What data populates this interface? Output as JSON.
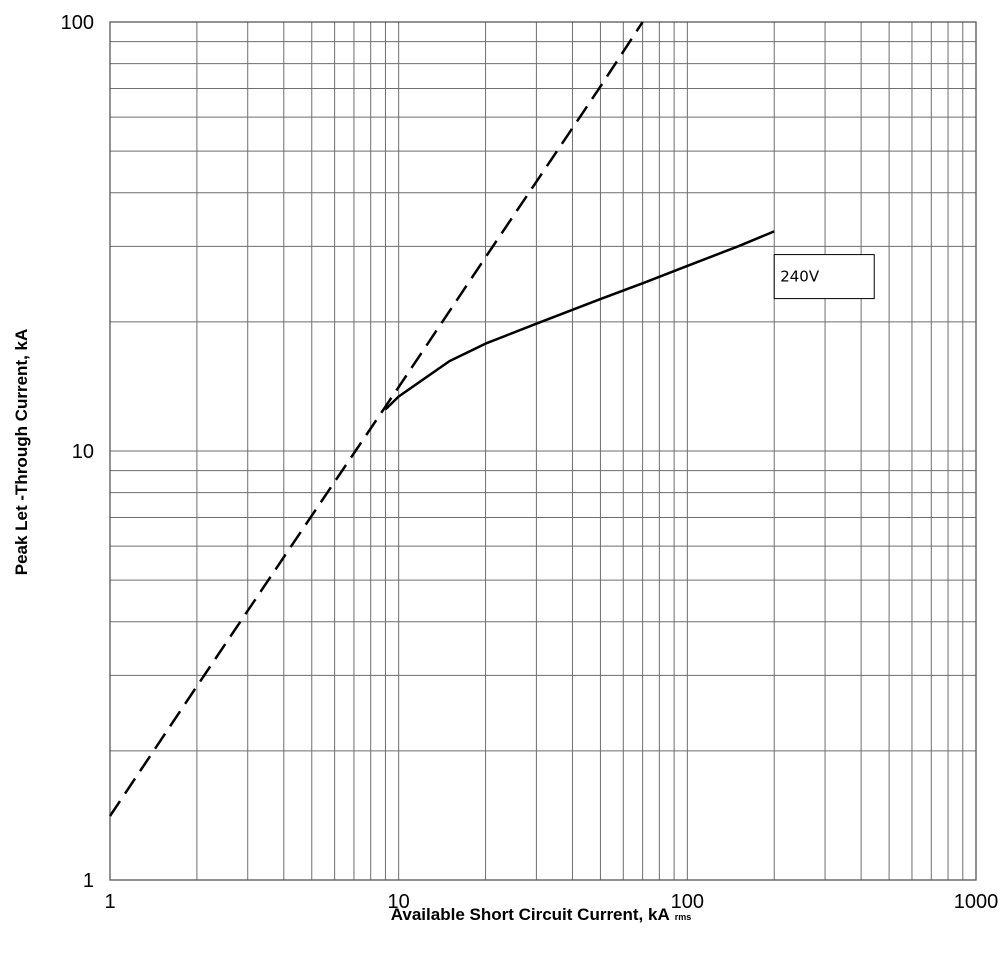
{
  "chart_data": {
    "type": "line",
    "title": "",
    "xlabel": "Available Short Circuit Current, kA",
    "xlabel_subscript": "rms",
    "ylabel": "Peak Let -Through Current, kA",
    "xscale": "log",
    "yscale": "log",
    "xlim": [
      1,
      1000
    ],
    "ylim": [
      1,
      100
    ],
    "xticks": [
      "1",
      "10",
      "100",
      "1000"
    ],
    "yticks": [
      "1",
      "10",
      "100"
    ],
    "grid": true,
    "legend": "none",
    "series": [
      {
        "style": "dashed",
        "color": "#000000",
        "x": [
          1,
          2,
          5,
          10,
          20,
          50,
          70
        ],
        "y": [
          1.41,
          2.83,
          7.07,
          14.1,
          28.3,
          70.7,
          100
        ]
      },
      {
        "style": "solid",
        "color": "#000000",
        "x": [
          9,
          10,
          15,
          20,
          30,
          50,
          70,
          100,
          150,
          200
        ],
        "y": [
          12.5,
          13.4,
          16.2,
          17.8,
          19.8,
          22.6,
          24.6,
          27.0,
          30.0,
          32.5
        ]
      }
    ],
    "annotations": [
      {
        "text": "240V",
        "x": 200,
        "y": 25.5
      }
    ]
  }
}
